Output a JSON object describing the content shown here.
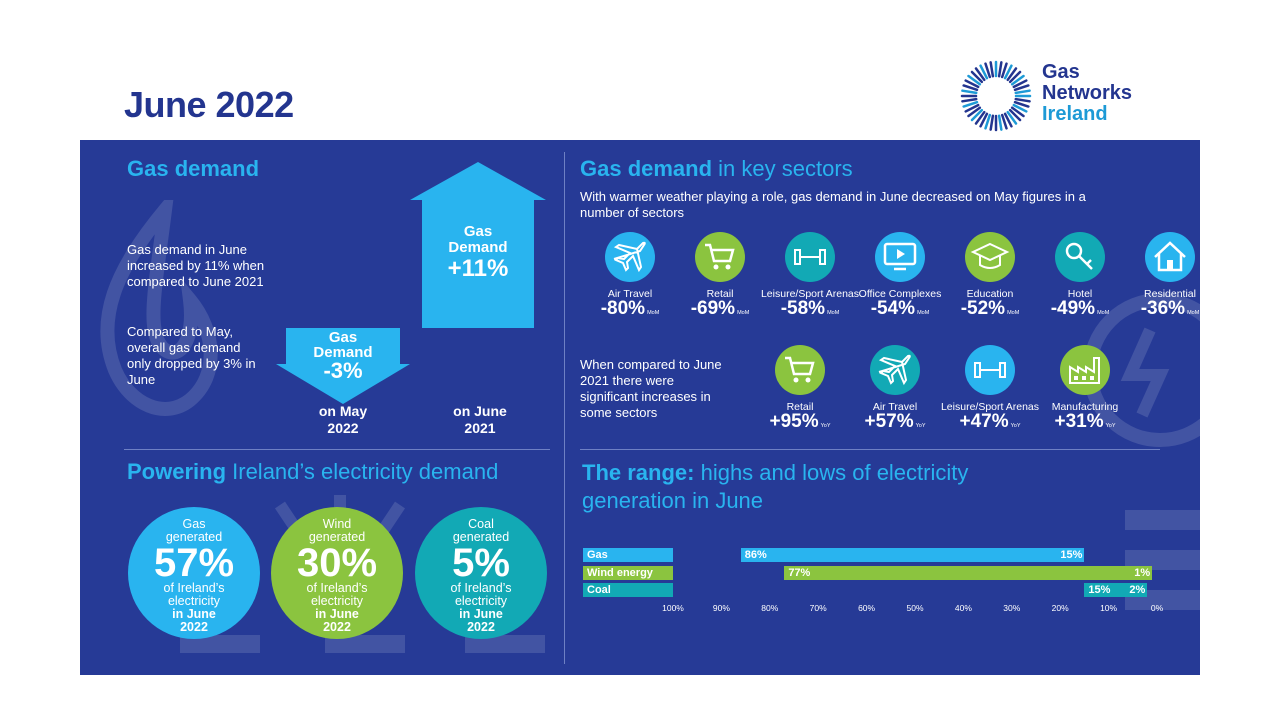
{
  "title": "June 2022",
  "logo": {
    "line1": "Gas",
    "line2": "Networks",
    "line3": "Ireland"
  },
  "colors": {
    "navy": "#263a96",
    "light_blue": "#29b4ef",
    "green": "#8bc43f",
    "teal": "#12a9b5",
    "title": "#23358f"
  },
  "gas_demand": {
    "heading": "Gas demand",
    "text1": "Gas demand in June increased by 11% when compared to June 2021",
    "text2": "Compared to May, overall gas demand only dropped by 3% in June",
    "down_arrow": {
      "line1": "Gas",
      "line2": "Demand",
      "value": "-3%",
      "caption_line1": "on May",
      "caption_line2": "2022"
    },
    "up_arrow": {
      "line1": "Gas",
      "line2": "Demand",
      "value": "+11%",
      "caption_line1": "on June",
      "caption_line2": "2021"
    }
  },
  "key_sectors": {
    "heading_bold": "Gas demand",
    "heading_rest": " in key sectors",
    "intro": "With warmer weather playing a role, gas demand in June decreased on May figures in a number of sectors",
    "mom_items": [
      {
        "name": "Air Travel",
        "value": "-80%",
        "suffix": "MoM",
        "icon": "plane-icon",
        "color": "#29b4ef"
      },
      {
        "name": "Retail",
        "value": "-69%",
        "suffix": "MoM",
        "icon": "cart-icon",
        "color": "#8bc43f"
      },
      {
        "name": "Leisure/Sport Arenas",
        "value": "-58%",
        "suffix": "MoM",
        "icon": "dumbbell-icon",
        "color": "#12a9b5"
      },
      {
        "name": "Office Complexes",
        "value": "-54%",
        "suffix": "MoM",
        "icon": "monitor-icon",
        "color": "#29b4ef"
      },
      {
        "name": "Education",
        "value": "-52%",
        "suffix": "MoM",
        "icon": "graduation-cap-icon",
        "color": "#8bc43f"
      },
      {
        "name": "Hotel",
        "value": "-49%",
        "suffix": "MoM",
        "icon": "key-icon",
        "color": "#12a9b5"
      },
      {
        "name": "Residential",
        "value": "-36%",
        "suffix": "MoM",
        "icon": "house-icon",
        "color": "#29b4ef"
      }
    ],
    "yoy_intro": "When compared to June 2021 there were significant increases in some sectors",
    "yoy_items": [
      {
        "name": "Retail",
        "value": "+95%",
        "suffix": "YoY",
        "icon": "cart-icon",
        "color": "#8bc43f"
      },
      {
        "name": "Air Travel",
        "value": "+57%",
        "suffix": "YoY",
        "icon": "plane-icon",
        "color": "#12a9b5"
      },
      {
        "name": "Leisure/Sport Arenas",
        "value": "+47%",
        "suffix": "YoY",
        "icon": "dumbbell-icon",
        "color": "#29b4ef"
      },
      {
        "name": "Manufacturing",
        "value": "+31%",
        "suffix": "YoY",
        "icon": "factory-icon",
        "color": "#8bc43f"
      }
    ]
  },
  "electricity": {
    "heading_bold": "Powering",
    "heading_rest": " Ireland’s electricity demand",
    "bubbles": [
      {
        "top1": "Gas",
        "top2": "generated",
        "pct": "57%",
        "mid1": "of Ireland’s",
        "mid2": "electricity",
        "bot1": "in June",
        "bot2": "2022",
        "color": "#29b4ef"
      },
      {
        "top1": "Wind",
        "top2": "generated",
        "pct": "30%",
        "mid1": "of Ireland’s",
        "mid2": "electricity",
        "bot1": "in June",
        "bot2": "2022",
        "color": "#8bc43f"
      },
      {
        "top1": "Coal",
        "top2": "generated",
        "pct": "5%",
        "mid1": "of Ireland’s",
        "mid2": "electricity",
        "bot1": "in June",
        "bot2": "2022",
        "color": "#12a9b5"
      }
    ]
  },
  "range": {
    "heading_bold": "The range:",
    "heading_rest": " highs and lows of electricity generation in June"
  },
  "chart_data": {
    "type": "bar",
    "orientation": "horizontal-range",
    "x_axis_reversed": true,
    "xlim": [
      100,
      0
    ],
    "ticks": [
      "100%",
      "90%",
      "80%",
      "70%",
      "60%",
      "50%",
      "40%",
      "30%",
      "20%",
      "10%",
      "0%"
    ],
    "tick_values": [
      100,
      90,
      80,
      70,
      60,
      50,
      40,
      30,
      20,
      10,
      0
    ],
    "series": [
      {
        "name": "Gas",
        "high": 86,
        "low": 15,
        "high_label": "86%",
        "low_label": "15%",
        "color": "#29b4ef"
      },
      {
        "name": "Wind energy",
        "high": 77,
        "low": 1,
        "high_label": "77%",
        "low_label": "1%",
        "color": "#8bc43f"
      },
      {
        "name": "Coal",
        "high": 15,
        "low": 2,
        "high_label": "15%",
        "low_label": "2%",
        "color": "#12a9b5"
      }
    ]
  }
}
